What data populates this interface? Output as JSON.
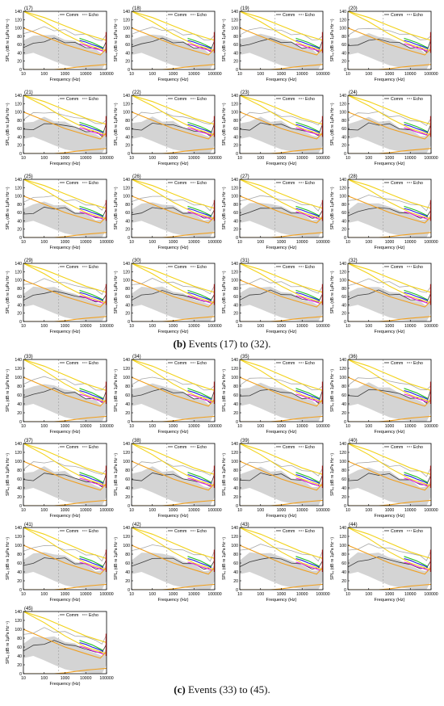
{
  "captions": {
    "b": {
      "letter": "(b)",
      "text": " Events (17) to (32)."
    },
    "c": {
      "letter": "(c)",
      "text": " Events (33) to (45)."
    }
  },
  "colors": {
    "gray_band": "#d4d4d4",
    "gray_line": "#a8a8a8",
    "dark_line": "#3a3a3a",
    "yellow": "#f2d21a",
    "orange": "#f0a020",
    "green": "#20c020",
    "blue": "#2020e0",
    "magenta": "#e020e0",
    "red": "#e02020",
    "cyan": "#20c0e0"
  },
  "chart_data": {
    "type": "line",
    "panel_count": 29,
    "x_scale": "log",
    "xlim": [
      10,
      100000
    ],
    "ylim": [
      0,
      140
    ],
    "xticks": [
      "10",
      "100",
      "1000",
      "10000",
      "100000"
    ],
    "yticks": [
      "0",
      "20",
      "40",
      "60",
      "80",
      "100",
      "120",
      "140"
    ],
    "xlabel": "Frequency (Hz)",
    "ylabel": "SPLₑ (dB re 1μPa Hz⁻¹)",
    "legend": {
      "comm": "Comm",
      "echo": "Echo",
      "placement": "top-right"
    },
    "grid": false,
    "panels": [
      {
        "label": "(17)",
        "group": "b"
      },
      {
        "label": "(18)",
        "group": "b"
      },
      {
        "label": "(19)",
        "group": "b"
      },
      {
        "label": "(20)",
        "group": "b"
      },
      {
        "label": "(21)",
        "group": "b"
      },
      {
        "label": "(22)",
        "group": "b"
      },
      {
        "label": "(23)",
        "group": "b"
      },
      {
        "label": "(24)",
        "group": "b"
      },
      {
        "label": "(25)",
        "group": "b"
      },
      {
        "label": "(26)",
        "group": "b"
      },
      {
        "label": "(27)",
        "group": "b"
      },
      {
        "label": "(28)",
        "group": "b"
      },
      {
        "label": "(29)",
        "group": "b"
      },
      {
        "label": "(30)",
        "group": "b"
      },
      {
        "label": "(31)",
        "group": "b"
      },
      {
        "label": "(32)",
        "group": "b"
      },
      {
        "label": "(33)",
        "group": "c"
      },
      {
        "label": "(34)",
        "group": "c"
      },
      {
        "label": "(35)",
        "group": "c"
      },
      {
        "label": "(36)",
        "group": "c"
      },
      {
        "label": "(37)",
        "group": "c"
      },
      {
        "label": "(38)",
        "group": "c"
      },
      {
        "label": "(39)",
        "group": "c"
      },
      {
        "label": "(40)",
        "group": "c"
      },
      {
        "label": "(41)",
        "group": "c"
      },
      {
        "label": "(42)",
        "group": "c"
      },
      {
        "label": "(43)",
        "group": "c"
      },
      {
        "label": "(44)",
        "group": "c"
      },
      {
        "label": "(45)",
        "group": "c"
      }
    ],
    "series": [
      {
        "role": "ambient band (gray shading)",
        "color": "gray_band",
        "x": [
          10,
          30,
          100,
          300,
          1000,
          3000,
          10000,
          30000,
          60000,
          100000
        ],
        "upper": [
          70,
          80,
          85,
          80,
          75,
          65,
          55,
          45,
          40,
          60
        ],
        "lower": [
          35,
          40,
          30,
          20,
          10,
          5,
          2,
          0,
          0,
          20
        ]
      },
      {
        "role": "upper gray spectrum",
        "color": "gray_line",
        "x": [
          10,
          30,
          100,
          300,
          1000,
          3000,
          10000,
          30000,
          60000,
          100000
        ],
        "values": [
          85,
          95,
          100,
          97,
          92,
          87,
          82,
          75,
          68,
          85
        ]
      },
      {
        "role": "dark spectrum",
        "color": "dark_line",
        "x": [
          10,
          30,
          100,
          300,
          1000,
          3000,
          10000,
          30000,
          60000,
          100000
        ],
        "values": [
          55,
          60,
          70,
          72,
          68,
          62,
          55,
          50,
          45,
          70
        ]
      },
      {
        "role": "yellow audiogram upper",
        "color": "yellow",
        "x": [
          10,
          100,
          1000,
          10000,
          100000
        ],
        "values": [
          140,
          125,
          105,
          85,
          70
        ]
      },
      {
        "role": "yellow audiogram lower",
        "color": "yellow",
        "x": [
          10,
          100,
          1000,
          10000,
          100000
        ],
        "values": [
          140,
          115,
          85,
          60,
          45
        ]
      },
      {
        "role": "orange threshold",
        "color": "orange",
        "x": [
          10,
          100,
          1000,
          10000,
          50000,
          100000
        ],
        "values": [
          100,
          80,
          60,
          45,
          35,
          50
        ]
      },
      {
        "role": "orange low curve",
        "color": "orange",
        "x": [
          10,
          300,
          1000,
          3000,
          10000,
          30000,
          100000
        ],
        "values": [
          0,
          0,
          2,
          5,
          8,
          10,
          12
        ]
      },
      {
        "role": "colored segments",
        "color": "green",
        "x": [
          5000,
          10000,
          20000,
          40000,
          70000
        ],
        "values": [
          75,
          70,
          65,
          58,
          52
        ]
      },
      {
        "role": "colored segments",
        "color": "blue",
        "x": [
          5000,
          10000,
          20000,
          40000,
          70000
        ],
        "values": [
          70,
          66,
          60,
          55,
          50
        ]
      },
      {
        "role": "colored segments",
        "color": "magenta",
        "x": [
          5000,
          10000,
          20000,
          40000,
          70000
        ],
        "values": [
          62,
          58,
          52,
          48,
          44
        ]
      }
    ]
  }
}
